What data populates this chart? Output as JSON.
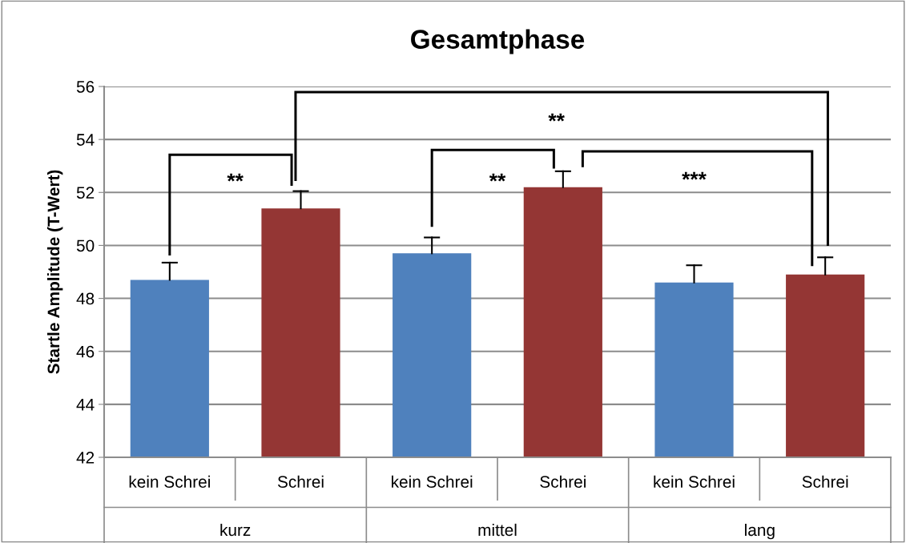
{
  "chart_data": {
    "type": "bar",
    "title": "Gesamtphase",
    "ylabel": "Startle Amplitude (T-Wert)",
    "categories": [
      "kein Schrei",
      "Schrei",
      "kein Schrei",
      "Schrei",
      "kein Schrei",
      "Schrei"
    ],
    "values": [
      48.7,
      51.4,
      49.7,
      52.2,
      48.6,
      48.9
    ],
    "colors": [
      "#4f81bd",
      "#943634",
      "#4f81bd",
      "#943634",
      "#4f81bd",
      "#943634"
    ],
    "errors": [
      [
        48.7,
        49.35
      ],
      [
        51.4,
        52.05
      ],
      [
        49.7,
        50.3
      ],
      [
        52.2,
        52.8
      ],
      [
        48.6,
        49.25
      ],
      [
        48.9,
        49.55
      ]
    ],
    "annotations": [
      "**",
      "**",
      "**",
      "***",
      "kurz",
      "mittel",
      "lang"
    ],
    "ylim": [
      42,
      56
    ],
    "yticks": [
      42,
      44,
      46,
      48,
      50,
      52,
      54,
      56
    ],
    "grid": "y"
  }
}
